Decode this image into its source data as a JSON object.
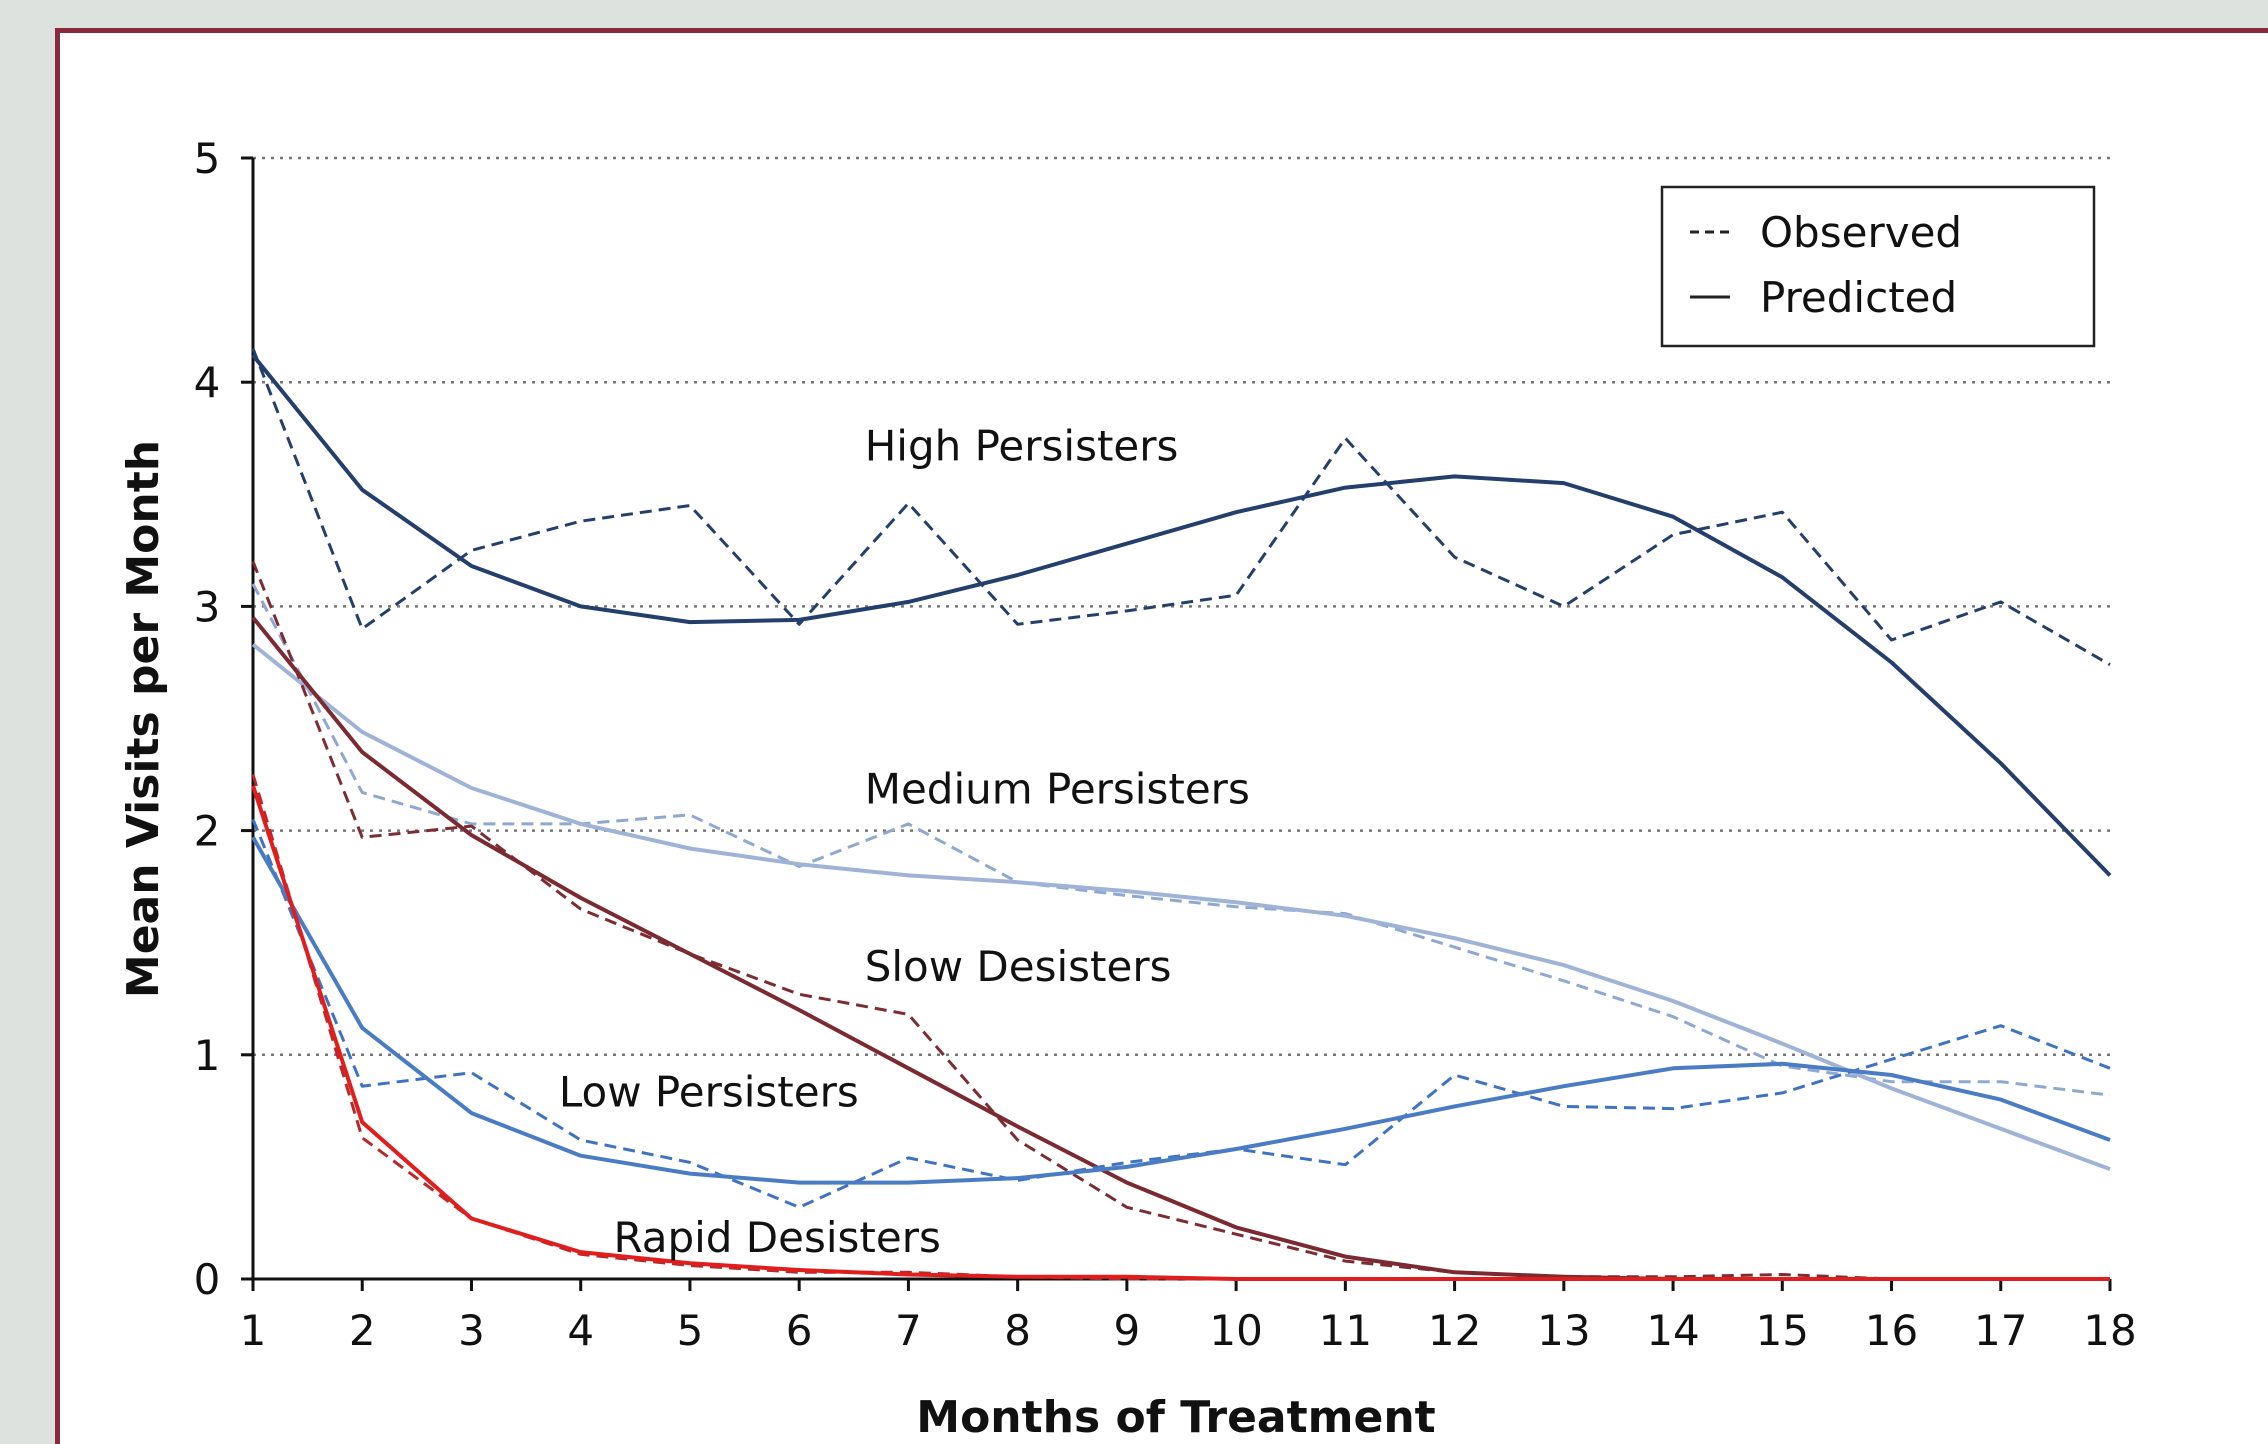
{
  "chart_data": {
    "type": "line",
    "title": "",
    "xlabel": "Months of Treatment",
    "ylabel": "Mean Visits per Month",
    "xlim": [
      1,
      18
    ],
    "ylim": [
      0,
      5
    ],
    "x": [
      1,
      2,
      3,
      4,
      5,
      6,
      7,
      8,
      9,
      10,
      11,
      12,
      13,
      14,
      15,
      16,
      17,
      18
    ],
    "x_ticks": [
      "1",
      "2",
      "3",
      "4",
      "5",
      "6",
      "7",
      "8",
      "9",
      "10",
      "11",
      "12",
      "13",
      "14",
      "15",
      "16",
      "17",
      "18"
    ],
    "y_ticks": [
      "0",
      "1",
      "2",
      "3",
      "4",
      "5"
    ],
    "grid": "horizontal dotted",
    "legend": {
      "position": "top-right",
      "entries": [
        {
          "symbol": "---",
          "label": "Observed",
          "style": "dashed"
        },
        {
          "symbol": "—",
          "label": "Predicted",
          "style": "solid"
        }
      ]
    },
    "annotations": [
      {
        "text": "High Persisters",
        "x": 6.6,
        "y": 3.65
      },
      {
        "text": "Medium Persisters",
        "x": 6.6,
        "y": 2.12
      },
      {
        "text": "Slow Desisters",
        "x": 6.6,
        "y": 1.33
      },
      {
        "text": "Low Persisters",
        "x": 3.8,
        "y": 0.77
      },
      {
        "text": "Rapid Desisters",
        "x": 4.3,
        "y": 0.12
      }
    ],
    "series": [
      {
        "group": "High Persisters",
        "kind": "observed",
        "style": "dashed",
        "color": "#243f6b",
        "values": [
          4.15,
          2.9,
          3.25,
          3.38,
          3.45,
          2.92,
          3.46,
          2.92,
          2.98,
          3.05,
          3.75,
          3.22,
          3.0,
          3.32,
          3.42,
          2.85,
          3.02,
          2.74
        ]
      },
      {
        "group": "High Persisters",
        "kind": "predicted",
        "style": "solid",
        "color": "#243f6b",
        "values": [
          4.12,
          3.52,
          3.18,
          3.0,
          2.93,
          2.94,
          3.02,
          3.14,
          3.28,
          3.42,
          3.53,
          3.58,
          3.55,
          3.4,
          3.13,
          2.75,
          2.3,
          1.8
        ]
      },
      {
        "group": "Medium Persisters",
        "kind": "observed",
        "style": "dashed",
        "color": "#8fa8cf",
        "values": [
          3.1,
          2.17,
          2.03,
          2.03,
          2.07,
          1.84,
          2.03,
          1.77,
          1.71,
          1.66,
          1.63,
          1.48,
          1.33,
          1.17,
          0.95,
          0.88,
          0.88,
          0.82
        ]
      },
      {
        "group": "Medium Persisters",
        "kind": "predicted",
        "style": "solid",
        "color": "#9eb3d6",
        "values": [
          2.83,
          2.44,
          2.19,
          2.03,
          1.92,
          1.85,
          1.8,
          1.77,
          1.73,
          1.68,
          1.62,
          1.52,
          1.4,
          1.24,
          1.05,
          0.85,
          0.67,
          0.49
        ]
      },
      {
        "group": "Slow Desisters",
        "kind": "observed",
        "style": "dashed",
        "color": "#7d2c33",
        "values": [
          3.2,
          1.97,
          2.02,
          1.65,
          1.45,
          1.27,
          1.18,
          0.62,
          0.32,
          0.2,
          0.08,
          0.03,
          0.01,
          0.01,
          0.02,
          0.0,
          0.0,
          0.0
        ]
      },
      {
        "group": "Slow Desisters",
        "kind": "predicted",
        "style": "solid",
        "color": "#7a2a30",
        "values": [
          2.95,
          2.35,
          1.98,
          1.7,
          1.45,
          1.2,
          0.94,
          0.68,
          0.43,
          0.23,
          0.1,
          0.03,
          0.01,
          0.0,
          0.0,
          0.0,
          0.0,
          0.0
        ]
      },
      {
        "group": "Low Persisters",
        "kind": "observed",
        "style": "dashed",
        "color": "#3f73c2",
        "values": [
          2.05,
          0.86,
          0.92,
          0.62,
          0.52,
          0.32,
          0.54,
          0.44,
          0.52,
          0.58,
          0.51,
          0.91,
          0.77,
          0.76,
          0.83,
          0.98,
          1.13,
          0.94
        ]
      },
      {
        "group": "Low Persisters",
        "kind": "predicted",
        "style": "solid",
        "color": "#4a7cc4",
        "values": [
          1.97,
          1.12,
          0.74,
          0.55,
          0.47,
          0.43,
          0.43,
          0.45,
          0.5,
          0.58,
          0.67,
          0.77,
          0.86,
          0.94,
          0.96,
          0.91,
          0.8,
          0.62
        ]
      },
      {
        "group": "Rapid Desisters",
        "kind": "observed",
        "style": "dashed",
        "color": "#b72a2a",
        "values": [
          2.25,
          0.63,
          0.27,
          0.11,
          0.06,
          0.03,
          0.03,
          0.01,
          0.0,
          0.0,
          0.0,
          0.0,
          0.0,
          0.0,
          0.0,
          0.0,
          0.0,
          0.0
        ]
      },
      {
        "group": "Rapid Desisters",
        "kind": "predicted",
        "style": "solid",
        "color": "#e01e1e",
        "values": [
          2.2,
          0.7,
          0.27,
          0.12,
          0.07,
          0.04,
          0.02,
          0.01,
          0.01,
          0.0,
          0.0,
          0.0,
          0.0,
          0.0,
          0.0,
          0.0,
          0.0,
          0.0
        ]
      }
    ]
  }
}
